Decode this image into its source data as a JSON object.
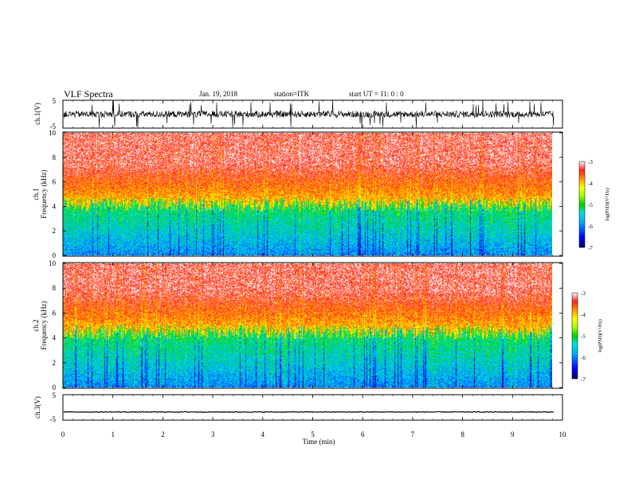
{
  "header": {
    "title": "VLF Spectra",
    "date": "Jan. 19, 2018",
    "station": "station=ITK",
    "start_time": "start UT = 11: 0 : 0"
  },
  "colors": {
    "spectrogram_colormap": [
      "#000066",
      "#0000ff",
      "#00a0ff",
      "#00e0e0",
      "#00d000",
      "#a0ff00",
      "#ffff00",
      "#ff9000",
      "#ff2020",
      "#ffffff"
    ],
    "trace": "#000000"
  },
  "chart_data": [
    {
      "type": "line",
      "name": "ch1-waveform",
      "ylabel": "ch.1(V)",
      "ylim": [
        -5,
        5
      ],
      "yticks": [
        "5",
        "-5"
      ],
      "xlim": [
        0,
        10
      ],
      "description_values": {
        "baseline_v": 0.0,
        "typical_amplitude_v": 1.2,
        "burst_peak_v": 5
      }
    },
    {
      "type": "heatmap",
      "name": "ch1-spectrogram",
      "ylabel_line1": "ch.1",
      "ylabel_line2": "Frequency (kHz)",
      "ylim": [
        0,
        10
      ],
      "yticks": [
        "0",
        "2",
        "4",
        "6",
        "8",
        "10"
      ],
      "xlim": [
        0,
        9.83
      ],
      "colorbar": {
        "label": "log(PSD)(V²/Hz)",
        "range": [
          -7,
          -3
        ],
        "ticks": [
          "-3",
          "-4",
          "-5",
          "-6",
          "-7"
        ]
      },
      "transition_freq_khz": 4.2
    },
    {
      "type": "heatmap",
      "name": "ch2-spectrogram",
      "ylabel_line1": "ch.2",
      "ylabel_line2": "Frequency (kHz)",
      "ylim": [
        0,
        10
      ],
      "yticks": [
        "0",
        "2",
        "4",
        "6",
        "8",
        "10"
      ],
      "xlim": [
        0,
        9.83
      ],
      "colorbar": {
        "label": "log(PSD)(V²/Hz)",
        "range": [
          -7,
          -3
        ],
        "ticks": [
          "-3",
          "-4",
          "-5",
          "-6",
          "-7"
        ]
      },
      "transition_freq_khz": 4.5
    },
    {
      "type": "line",
      "name": "ch3-waveform",
      "ylabel": "ch.3(V)",
      "ylim": [
        -5,
        5
      ],
      "yticks": [
        "5",
        "-5"
      ],
      "xlim": [
        0,
        10
      ],
      "level_v": -1.8
    }
  ],
  "xaxis": {
    "label": "Time (min)",
    "ticks": [
      "0",
      "1",
      "2",
      "3",
      "4",
      "5",
      "6",
      "7",
      "8",
      "9",
      "10"
    ],
    "range": [
      0,
      10
    ]
  }
}
